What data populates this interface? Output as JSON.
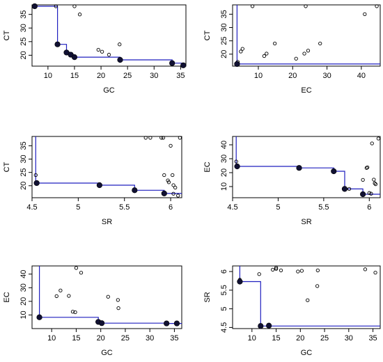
{
  "figure": {
    "background": "#ffffff",
    "frontier_color": "#1f1fbf",
    "point_color": "#111133"
  },
  "chart_data": [
    {
      "type": "scatter",
      "xlabel": "GC",
      "ylabel": "CT",
      "xlim": [
        7,
        36
      ],
      "ylim": [
        16,
        38.5
      ],
      "xticks": [
        10,
        15,
        20,
        25,
        30,
        35
      ],
      "yticks": [
        20,
        25,
        30,
        35
      ],
      "points": [
        [
          7.5,
          38
        ],
        [
          11.5,
          38
        ],
        [
          15,
          38
        ],
        [
          16,
          35
        ],
        [
          11.8,
          24
        ],
        [
          13.5,
          21
        ],
        [
          14.3,
          20.2
        ],
        [
          15,
          19.3
        ],
        [
          19.5,
          22
        ],
        [
          20.2,
          21.3
        ],
        [
          21.5,
          20.2
        ],
        [
          23.5,
          24
        ],
        [
          23.6,
          18.3
        ],
        [
          33.4,
          17.1
        ],
        [
          35.5,
          16.3
        ]
      ],
      "frontier_points": [
        [
          7.5,
          38
        ],
        [
          11.8,
          24
        ],
        [
          13.5,
          21
        ],
        [
          14.3,
          20.2
        ],
        [
          15,
          19.3
        ],
        [
          23.6,
          18.3
        ],
        [
          33.4,
          17.1
        ],
        [
          35.5,
          16.3
        ]
      ],
      "frontier_line": [
        [
          7.5,
          38
        ],
        [
          11.8,
          38
        ],
        [
          11.8,
          24
        ],
        [
          13.5,
          24
        ],
        [
          13.5,
          21
        ],
        [
          14.3,
          21
        ],
        [
          14.3,
          20.2
        ],
        [
          15,
          20.2
        ],
        [
          15,
          19.3
        ],
        [
          23.6,
          19.3
        ],
        [
          23.6,
          18.3
        ],
        [
          33.4,
          18.3
        ],
        [
          33.4,
          17.1
        ],
        [
          35.5,
          17.1
        ],
        [
          35.5,
          16.3
        ],
        [
          36,
          16.3
        ]
      ]
    },
    {
      "type": "scatter",
      "xlabel": "EC",
      "ylabel": "CT",
      "xlim": [
        2.5,
        45.5
      ],
      "ylim": [
        15.5,
        38.5
      ],
      "xticks": [
        10,
        20,
        30,
        40
      ],
      "yticks": [
        20,
        25,
        30,
        35
      ],
      "points": [
        [
          3.8,
          16.3
        ],
        [
          4,
          17.1
        ],
        [
          4.9,
          21
        ],
        [
          5.4,
          22
        ],
        [
          8.3,
          38
        ],
        [
          11.7,
          19.3
        ],
        [
          12.4,
          20.2
        ],
        [
          14.8,
          24
        ],
        [
          21,
          18.3
        ],
        [
          23.4,
          20.2
        ],
        [
          23.8,
          38
        ],
        [
          24.5,
          21.3
        ],
        [
          28,
          24
        ],
        [
          41,
          35
        ],
        [
          44.5,
          38
        ]
      ],
      "frontier_points": [
        [
          3.8,
          16.3
        ]
      ],
      "frontier_line": [
        [
          3.8,
          38.5
        ],
        [
          3.8,
          16.3
        ],
        [
          45.5,
          16.3
        ]
      ]
    },
    {
      "type": "scatter",
      "xlabel": "SR",
      "ylabel": "CT",
      "xlim": [
        4.5,
        6.12
      ],
      "ylim": [
        15.5,
        38.5
      ],
      "xticks": [
        4.5,
        5.0,
        5.5,
        6.0
      ],
      "yticks": [
        20,
        25,
        30,
        35
      ],
      "points": [
        [
          4.54,
          24
        ],
        [
          4.55,
          21
        ],
        [
          5.23,
          20.2
        ],
        [
          5.61,
          18.3
        ],
        [
          5.93,
          17.1
        ],
        [
          5.73,
          38
        ],
        [
          5.78,
          38
        ],
        [
          5.9,
          38
        ],
        [
          5.92,
          38
        ],
        [
          6.1,
          38
        ],
        [
          5.93,
          24
        ],
        [
          5.97,
          22
        ],
        [
          5.98,
          21.3
        ],
        [
          6.0,
          35
        ],
        [
          6.02,
          24
        ],
        [
          6.03,
          20.2
        ],
        [
          6.03,
          17
        ],
        [
          6.05,
          19.3
        ],
        [
          6.08,
          16.3
        ]
      ],
      "frontier_points": [
        [
          4.55,
          21
        ],
        [
          5.23,
          20.2
        ],
        [
          5.61,
          18.3
        ],
        [
          5.93,
          17.1
        ]
      ],
      "frontier_line": [
        [
          4.54,
          38.5
        ],
        [
          4.54,
          21
        ],
        [
          5.23,
          21
        ],
        [
          5.23,
          20.2
        ],
        [
          5.61,
          20.2
        ],
        [
          5.61,
          18.3
        ],
        [
          5.93,
          18.3
        ],
        [
          5.93,
          17.1
        ],
        [
          6.12,
          17.1
        ]
      ]
    },
    {
      "type": "scatter",
      "xlabel": "SR",
      "ylabel": "EC",
      "xlim": [
        4.5,
        6.12
      ],
      "ylim": [
        2,
        46
      ],
      "xticks": [
        4.5,
        5.0,
        5.5,
        6.0
      ],
      "yticks": [
        10,
        20,
        30,
        40
      ],
      "points": [
        [
          4.54,
          28
        ],
        [
          4.55,
          24.5
        ],
        [
          5.23,
          23.4
        ],
        [
          5.61,
          21
        ],
        [
          5.73,
          8.3
        ],
        [
          5.78,
          8.3
        ],
        [
          5.93,
          4.5
        ],
        [
          5.93,
          14.8
        ],
        [
          5.97,
          23.4
        ],
        [
          5.98,
          23.8
        ],
        [
          6.0,
          5.4
        ],
        [
          6.02,
          4.9
        ],
        [
          6.03,
          41
        ],
        [
          6.05,
          15
        ],
        [
          6.06,
          12.4
        ],
        [
          6.07,
          11.7
        ],
        [
          6.1,
          44.5
        ]
      ],
      "frontier_points": [
        [
          4.55,
          24.5
        ],
        [
          5.23,
          23.4
        ],
        [
          5.61,
          21
        ],
        [
          5.73,
          8.3
        ],
        [
          5.93,
          4.5
        ]
      ],
      "frontier_line": [
        [
          4.54,
          46
        ],
        [
          4.54,
          24.5
        ],
        [
          5.23,
          24.5
        ],
        [
          5.23,
          23.4
        ],
        [
          5.61,
          23.4
        ],
        [
          5.61,
          21
        ],
        [
          5.73,
          21
        ],
        [
          5.73,
          8.3
        ],
        [
          5.93,
          8.3
        ],
        [
          5.93,
          4.5
        ],
        [
          6.12,
          4.5
        ]
      ]
    },
    {
      "type": "scatter",
      "xlabel": "GC",
      "ylabel": "EC",
      "xlim": [
        6,
        36.5
      ],
      "ylim": [
        0,
        46
      ],
      "xticks": [
        10,
        15,
        20,
        25,
        30,
        35
      ],
      "yticks": [
        10,
        20,
        30,
        40
      ],
      "points": [
        [
          7.5,
          8.3
        ],
        [
          11,
          23.8
        ],
        [
          11.8,
          28
        ],
        [
          13.5,
          24
        ],
        [
          14.3,
          12.4
        ],
        [
          14.8,
          12
        ],
        [
          15,
          44.5
        ],
        [
          16,
          41
        ],
        [
          19.5,
          4.9
        ],
        [
          20.2,
          4
        ],
        [
          21.5,
          23.4
        ],
        [
          23.5,
          21
        ],
        [
          23.6,
          15
        ],
        [
          33.4,
          3.8
        ],
        [
          35.5,
          3.8
        ]
      ],
      "frontier_points": [
        [
          7.5,
          8.3
        ],
        [
          19.5,
          4.9
        ],
        [
          20.2,
          4
        ],
        [
          33.4,
          3.8
        ],
        [
          35.5,
          3.8
        ]
      ],
      "frontier_line": [
        [
          7.5,
          46
        ],
        [
          7.5,
          8.3
        ],
        [
          19.5,
          8.3
        ],
        [
          19.5,
          4.9
        ],
        [
          20.2,
          4.9
        ],
        [
          20.2,
          4
        ],
        [
          33.4,
          4
        ],
        [
          33.4,
          3.8
        ],
        [
          36.5,
          3.8
        ]
      ]
    },
    {
      "type": "scatter",
      "xlabel": "GC",
      "ylabel": "SR",
      "xlim": [
        6,
        36.5
      ],
      "ylim": [
        4.47,
        6.15
      ],
      "xticks": [
        10,
        15,
        20,
        25,
        30,
        35
      ],
      "yticks": [
        4.5,
        5.0,
        5.5,
        6.0
      ],
      "points": [
        [
          7.5,
          5.78
        ],
        [
          7.6,
          5.73
        ],
        [
          11.5,
          5.93
        ],
        [
          11.8,
          4.54
        ],
        [
          13.5,
          4.55
        ],
        [
          14.3,
          6.05
        ],
        [
          15,
          6.1
        ],
        [
          15,
          6.07
        ],
        [
          16,
          6.03
        ],
        [
          19.5,
          6.0
        ],
        [
          20.3,
          6.02
        ],
        [
          21.5,
          5.23
        ],
        [
          23.5,
          5.61
        ],
        [
          23.6,
          6.03
        ],
        [
          33.4,
          6.06
        ],
        [
          35.5,
          5.97
        ]
      ],
      "frontier_points": [
        [
          7.5,
          5.73
        ],
        [
          11.8,
          4.54
        ],
        [
          13.5,
          4.55
        ]
      ],
      "frontier_line": [
        [
          7.5,
          6.15
        ],
        [
          7.5,
          5.73
        ],
        [
          11.8,
          5.73
        ],
        [
          11.8,
          4.54
        ],
        [
          36.5,
          4.54
        ]
      ]
    }
  ]
}
